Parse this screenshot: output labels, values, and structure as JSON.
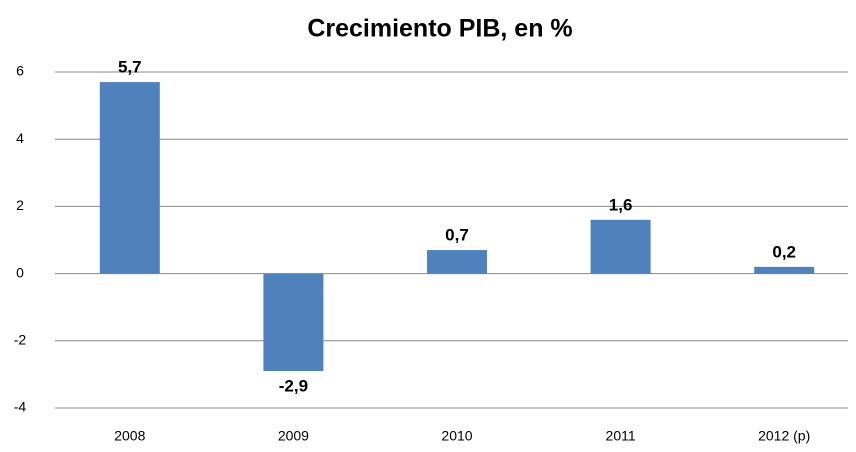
{
  "chart_data": {
    "type": "bar",
    "title": "Crecimiento PIB, en %",
    "categories": [
      "2008",
      "2009",
      "2010",
      "2011",
      "2012 (p)"
    ],
    "values": [
      5.7,
      -2.9,
      0.7,
      1.6,
      0.2
    ],
    "value_labels": [
      "5,7",
      "-2,9",
      "0,7",
      "1,6",
      "0,2"
    ],
    "color": "#4f81bd",
    "ylim": [
      -4,
      6
    ],
    "yticks": [
      -4,
      -2,
      0,
      2,
      4,
      6
    ],
    "grid": true
  }
}
